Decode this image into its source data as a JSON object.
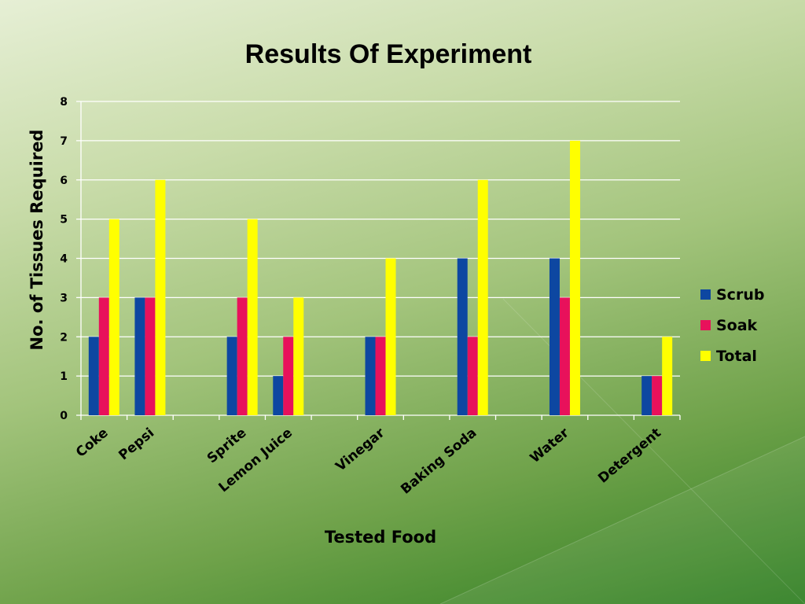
{
  "colors": {
    "scrub": "#0d47a1",
    "soak": "#e8115b",
    "total": "#ffff00",
    "grid": "#ffffff"
  },
  "chart_data": {
    "type": "bar",
    "title": "Results Of Experiment",
    "xlabel": "Tested Food",
    "ylabel": "No. of Tissues Required",
    "ylim": [
      0,
      8
    ],
    "yticks": [
      0,
      1,
      2,
      3,
      4,
      5,
      6,
      7,
      8
    ],
    "grid": true,
    "legend_position": "right",
    "categories": [
      "Coke",
      "Pepsi",
      "",
      "Sprite",
      "Lemon Juice",
      "",
      "Vinegar",
      "",
      "Baking Soda",
      "",
      "Water",
      "",
      "Detergent"
    ],
    "series": [
      {
        "name": "Scrub",
        "values": [
          2,
          3,
          null,
          2,
          1,
          null,
          2,
          null,
          4,
          null,
          4,
          null,
          1
        ]
      },
      {
        "name": "Soak",
        "values": [
          3,
          3,
          null,
          3,
          2,
          null,
          2,
          null,
          2,
          null,
          3,
          null,
          1
        ]
      },
      {
        "name": "Total",
        "values": [
          5,
          6,
          null,
          5,
          3,
          null,
          4,
          null,
          6,
          null,
          7,
          null,
          2
        ]
      }
    ]
  }
}
